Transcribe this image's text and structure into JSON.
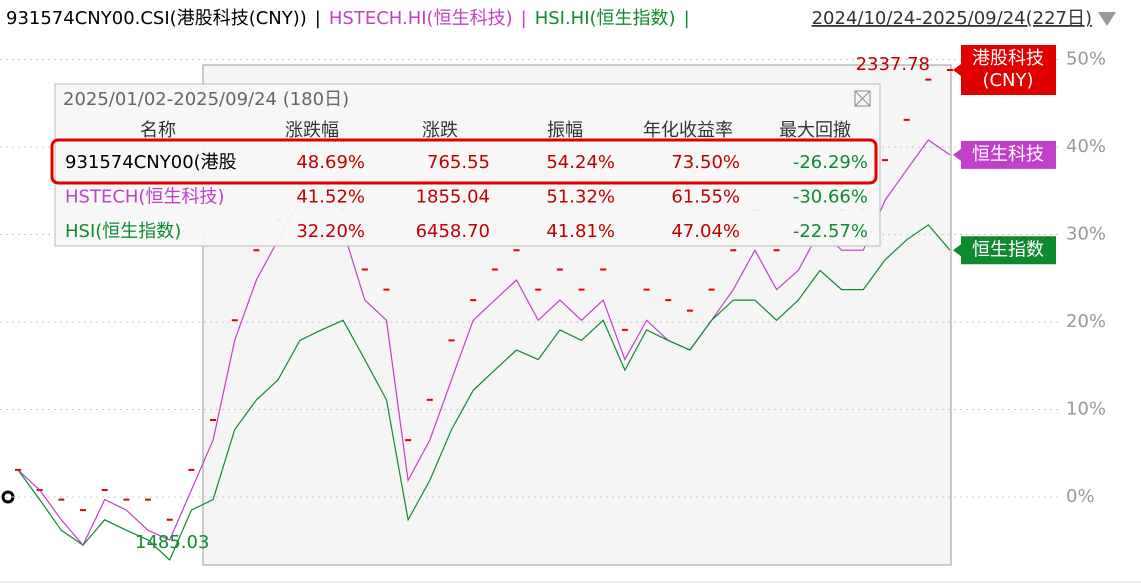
{
  "header": {
    "separator": "|",
    "range": "2024/10/24-2025/09/24(227日)"
  },
  "chart_data": {
    "type": "line",
    "ylim": [
      -8,
      53
    ],
    "yticks": [
      {
        "value": 0,
        "label": "0%"
      },
      {
        "value": 10,
        "label": "10%"
      },
      {
        "value": 20,
        "label": "20%"
      },
      {
        "value": 30,
        "label": "30%"
      },
      {
        "value": 40,
        "label": "40%"
      },
      {
        "value": 50,
        "label": "50%"
      }
    ],
    "grid": true,
    "series": [
      {
        "name": "931574CNY00.CSI(港股科技(CNY))",
        "color": "#e00000",
        "style": "dash",
        "tag": [
          "港股科技",
          "(CNY)"
        ],
        "values": [
          3.1,
          0.8,
          -0.3,
          -1.5,
          0.8,
          -0.3,
          -0.3,
          -2.6,
          3.1,
          8.8,
          20.2,
          28.2,
          31.7,
          37.4,
          33.9,
          32.8,
          26,
          23.7,
          6.5,
          11.1,
          17.9,
          22.5,
          26,
          28.2,
          23.7,
          26,
          23.7,
          26,
          19.1,
          23.7,
          22.5,
          21.3,
          23.7,
          28.2,
          32.8,
          28.2,
          30.5,
          35.1,
          32.8,
          32.8,
          38.5,
          43.1,
          47.7,
          48.8
        ]
      },
      {
        "name": "HSTECH.HI(恒生科技)",
        "color": "#c040c8",
        "tag": [
          "恒生科技"
        ],
        "values": [
          3.1,
          0.8,
          -2.6,
          -5.5,
          -0.3,
          -1.5,
          -3.8,
          -4.9,
          0.8,
          6.5,
          17.9,
          24.8,
          29.4,
          33.9,
          31.7,
          30.5,
          22.5,
          20.2,
          1.9,
          6.5,
          13.4,
          20.2,
          22.5,
          24.8,
          20.2,
          22.5,
          20.2,
          22.5,
          15.7,
          20.2,
          17.9,
          16.8,
          20.2,
          23.7,
          28.2,
          23.7,
          25.9,
          30.5,
          28.2,
          28.2,
          33.9,
          37.4,
          40.8,
          39.1
        ]
      },
      {
        "name": "HSI.HI(恒生指数)",
        "color": "#108a30",
        "tag": [
          "恒生指数"
        ],
        "values": [
          3.1,
          -0.3,
          -3.8,
          -5.5,
          -2.6,
          -3.8,
          -4.9,
          -7.2,
          -1.5,
          -0.3,
          7.7,
          11.1,
          13.4,
          17.9,
          19.1,
          20.2,
          15.7,
          11.1,
          -2.6,
          1.9,
          7.7,
          12.2,
          14.5,
          16.8,
          15.7,
          19.1,
          17.9,
          20.2,
          14.5,
          19.1,
          17.9,
          16.8,
          20.2,
          22.5,
          22.5,
          20.2,
          22.5,
          25.9,
          23.7,
          23.7,
          27.1,
          29.4,
          31.1,
          28.2
        ]
      }
    ],
    "annotations": {
      "max": "2337.78",
      "min": "1485.03"
    }
  },
  "table": {
    "title": "2025/01/02-2025/09/24 (180日)",
    "columns": [
      "名称",
      "涨跌幅",
      "涨跌",
      "振幅",
      "年化收益率",
      "最大回撤"
    ],
    "rows": [
      [
        "931574CNY00(港股",
        "48.69%",
        "765.55",
        "54.24%",
        "73.50%",
        "-26.29%"
      ],
      [
        "HSTECH(恒生科技)",
        "41.52%",
        "1855.04",
        "51.32%",
        "61.55%",
        "-30.66%"
      ],
      [
        "HSI(恒生指数)",
        "32.20%",
        "6458.70",
        "41.81%",
        "47.04%",
        "-22.57%"
      ]
    ]
  }
}
